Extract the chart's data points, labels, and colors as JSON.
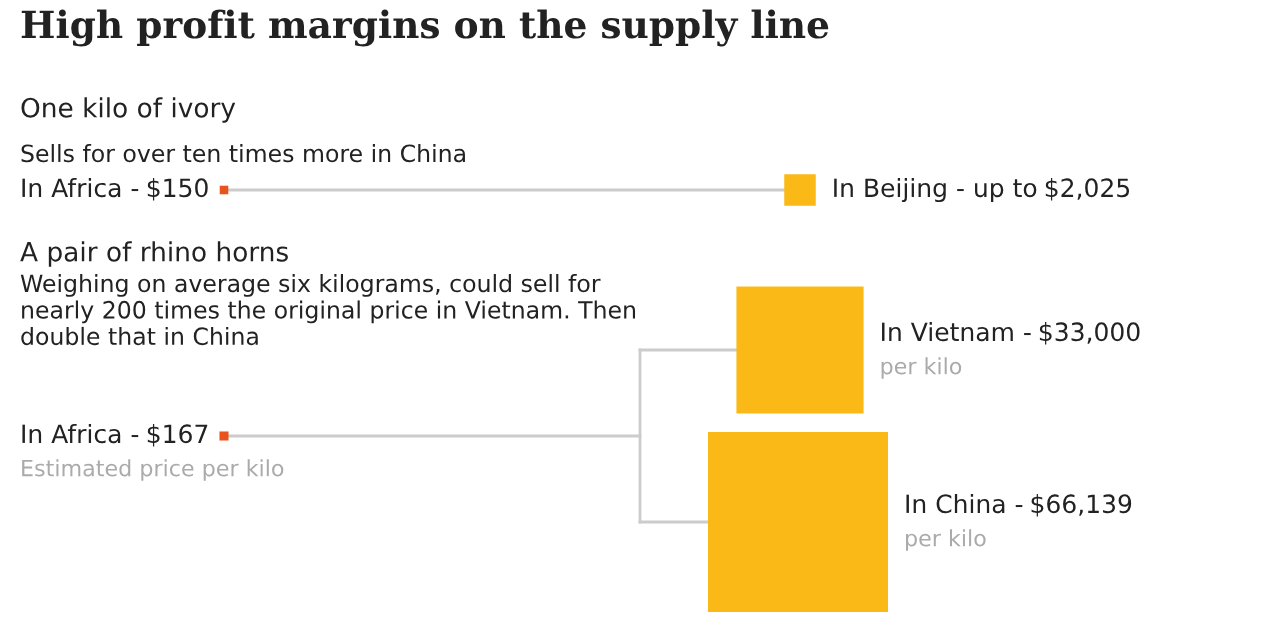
{
  "chart_data": [
    {
      "type": "other",
      "title": "High profit margins on the supply line",
      "subtitle": "One kilo of ivory",
      "annotations": [
        "Sells for over ten times more in China"
      ],
      "categories": [
        "In Africa -",
        "In Beijing - up to"
      ],
      "values": [
        150,
        2025
      ],
      "value_labels": [
        "$150",
        "$2,025"
      ],
      "colors": [
        "#e8541e",
        "#fbb917"
      ]
    },
    {
      "type": "other",
      "subtitle": "A pair of rhino horns",
      "annotations": [
        "Weighing on average six kilograms, could sell for nearly 200 times the original price in Vietnam. Then double that in China",
        "Estimated price per kilo",
        "per kilo",
        "per kilo"
      ],
      "categories": [
        "In Africa -",
        "In Vietnam -",
        "In China -"
      ],
      "values": [
        167,
        33000,
        66139
      ],
      "value_labels": [
        "$167",
        "$33,000",
        "$66,139"
      ],
      "colors": [
        "#e8541e",
        "#fbb917",
        "#fbb917"
      ]
    }
  ]
}
